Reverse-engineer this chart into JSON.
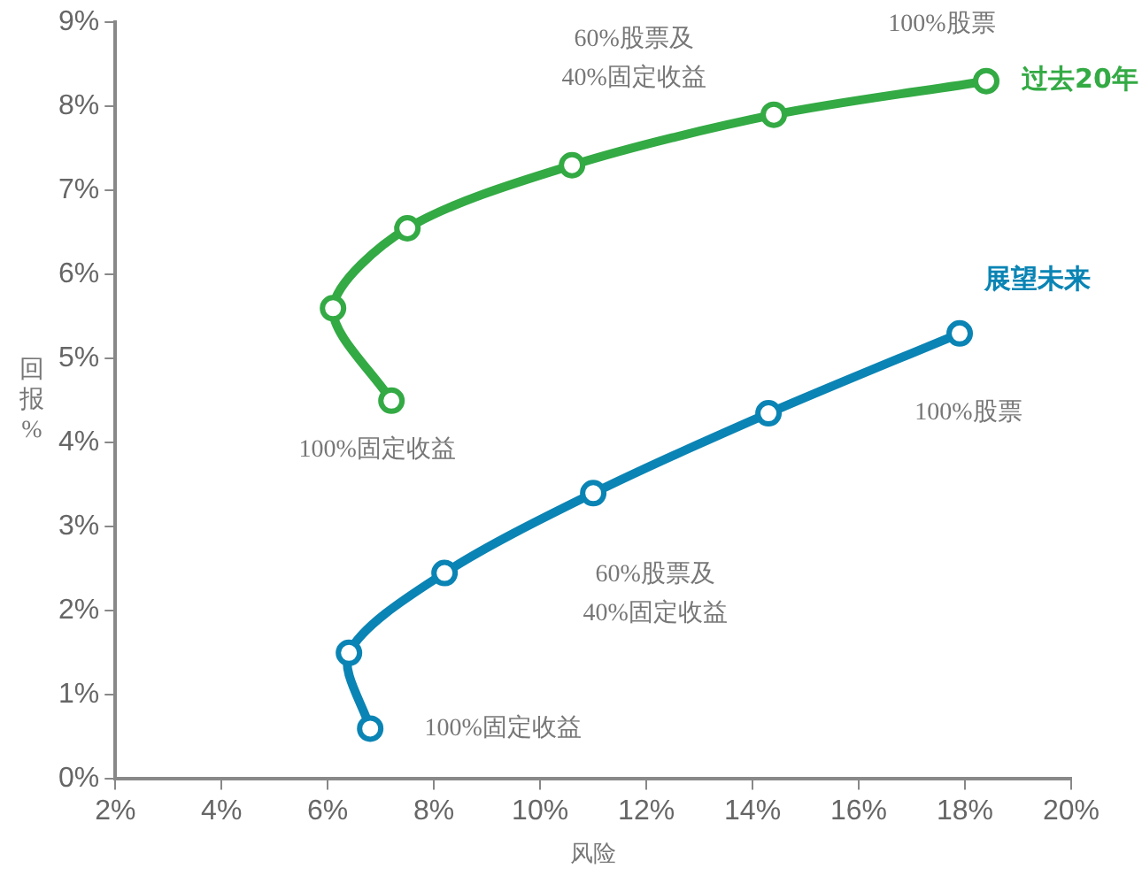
{
  "chart_data": {
    "type": "line",
    "xlabel": "风险",
    "ylabel": "回报%",
    "xlim": [
      2,
      20
    ],
    "ylim": [
      0,
      9
    ],
    "xticks": [
      {
        "value": 2,
        "label": "2%"
      },
      {
        "value": 4,
        "label": "4%"
      },
      {
        "value": 6,
        "label": "6%"
      },
      {
        "value": 8,
        "label": "8%"
      },
      {
        "value": 10,
        "label": "10%"
      },
      {
        "value": 12,
        "label": "12%"
      },
      {
        "value": 14,
        "label": "14%"
      },
      {
        "value": 16,
        "label": "16%"
      },
      {
        "value": 18,
        "label": "18%"
      },
      {
        "value": 20,
        "label": "20%"
      }
    ],
    "yticks": [
      {
        "value": 0,
        "label": "0%"
      },
      {
        "value": 1,
        "label": "1%"
      },
      {
        "value": 2,
        "label": "2%"
      },
      {
        "value": 3,
        "label": "3%"
      },
      {
        "value": 4,
        "label": "4%"
      },
      {
        "value": 5,
        "label": "5%"
      },
      {
        "value": 6,
        "label": "6%"
      },
      {
        "value": 7,
        "label": "7%"
      },
      {
        "value": 8,
        "label": "8%"
      },
      {
        "value": 9,
        "label": "9%"
      }
    ],
    "series": [
      {
        "name": "过去20年",
        "color": "#33aa44",
        "x": [
          7.2,
          6.1,
          7.5,
          10.6,
          14.4,
          18.4
        ],
        "values": [
          4.5,
          5.6,
          6.55,
          7.3,
          7.9,
          8.3
        ]
      },
      {
        "name": "展望未来",
        "color": "#0a84b4",
        "x": [
          6.8,
          6.4,
          8.2,
          11.0,
          14.3,
          17.9
        ],
        "values": [
          0.6,
          1.5,
          2.45,
          3.4,
          4.35,
          5.3
        ]
      }
    ],
    "annotations": [
      {
        "text": "100%股票",
        "x": 18.4,
        "y": 8.3
      },
      {
        "text": "60%股票及\n40%固定收益",
        "x": 10.6,
        "y": 7.3
      },
      {
        "text": "100%固定收益",
        "x": 7.2,
        "y": 4.5
      },
      {
        "text": "100%股票",
        "x": 17.9,
        "y": 5.3
      },
      {
        "text": "60%股票及\n40%固定收益",
        "x": 11.0,
        "y": 3.4
      },
      {
        "text": "100%固定收益",
        "x": 6.8,
        "y": 0.6
      }
    ],
    "grid": false,
    "legend": false,
    "marker": "circle",
    "line_style": "solid"
  }
}
